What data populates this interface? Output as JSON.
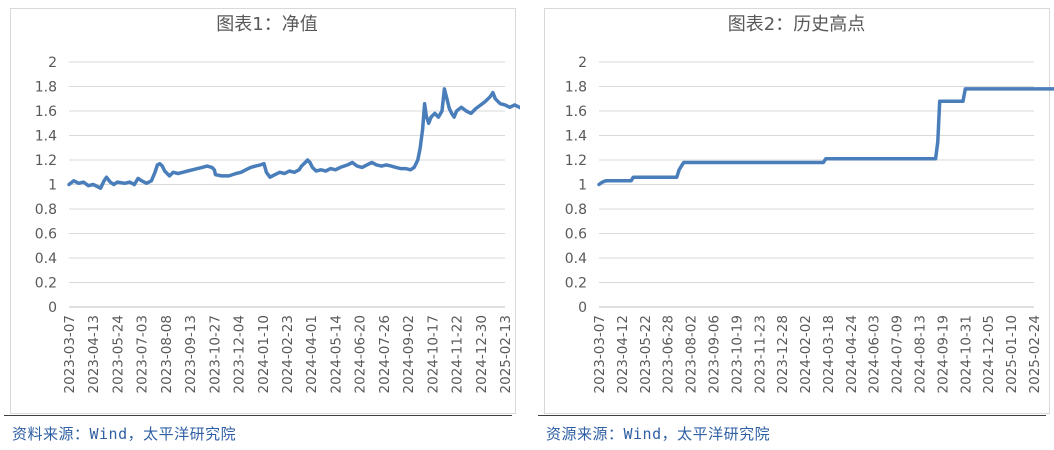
{
  "chart_data": [
    {
      "type": "line",
      "title": "图表1：净值",
      "xlabel": "",
      "ylabel": "",
      "ylim": [
        0,
        2
      ],
      "yticks": [
        "0",
        "0.2",
        "0.4",
        "0.6",
        "0.8",
        "1",
        "1.2",
        "1.4",
        "1.6",
        "1.8",
        "2"
      ],
      "categories": [
        "2023-03-07",
        "2023-04-13",
        "2023-05-24",
        "2023-07-03",
        "2023-08-08",
        "2023-09-13",
        "2023-10-27",
        "2023-12-04",
        "2024-01-10",
        "2024-02-23",
        "2024-04-01",
        "2024-05-14",
        "2024-06-20",
        "2024-07-26",
        "2024-09-02",
        "2024-10-17",
        "2024-11-22",
        "2024-12-30",
        "2025-02-13"
      ],
      "grid": true,
      "line_color": "#4a7ebb",
      "series": [
        {
          "name": "",
          "points": [
            [
              0,
              1.0
            ],
            [
              0.2,
              1.03
            ],
            [
              0.4,
              1.01
            ],
            [
              0.6,
              1.02
            ],
            [
              0.8,
              0.99
            ],
            [
              1.0,
              1.0
            ],
            [
              1.2,
              0.98
            ],
            [
              1.3,
              0.97
            ],
            [
              1.45,
              1.03
            ],
            [
              1.55,
              1.06
            ],
            [
              1.7,
              1.02
            ],
            [
              1.85,
              1.0
            ],
            [
              2.0,
              1.02
            ],
            [
              2.3,
              1.01
            ],
            [
              2.5,
              1.02
            ],
            [
              2.7,
              1.0
            ],
            [
              2.85,
              1.05
            ],
            [
              3.0,
              1.03
            ],
            [
              3.2,
              1.01
            ],
            [
              3.4,
              1.03
            ],
            [
              3.55,
              1.1
            ],
            [
              3.65,
              1.16
            ],
            [
              3.75,
              1.17
            ],
            [
              3.85,
              1.15
            ],
            [
              3.95,
              1.11
            ],
            [
              4.05,
              1.09
            ],
            [
              4.15,
              1.07
            ],
            [
              4.3,
              1.1
            ],
            [
              4.5,
              1.09
            ],
            [
              4.7,
              1.1
            ],
            [
              4.9,
              1.11
            ],
            [
              5.1,
              1.12
            ],
            [
              5.3,
              1.13
            ],
            [
              5.5,
              1.14
            ],
            [
              5.7,
              1.15
            ],
            [
              5.9,
              1.14
            ],
            [
              6.0,
              1.12
            ],
            [
              6.05,
              1.08
            ],
            [
              6.3,
              1.07
            ],
            [
              6.6,
              1.07
            ],
            [
              6.9,
              1.09
            ],
            [
              7.1,
              1.1
            ],
            [
              7.3,
              1.12
            ],
            [
              7.5,
              1.14
            ],
            [
              7.7,
              1.15
            ],
            [
              7.9,
              1.16
            ],
            [
              8.05,
              1.17
            ],
            [
              8.15,
              1.1
            ],
            [
              8.3,
              1.06
            ],
            [
              8.5,
              1.08
            ],
            [
              8.7,
              1.1
            ],
            [
              8.9,
              1.09
            ],
            [
              9.1,
              1.11
            ],
            [
              9.3,
              1.1
            ],
            [
              9.5,
              1.12
            ],
            [
              9.6,
              1.15
            ],
            [
              9.75,
              1.18
            ],
            [
              9.85,
              1.2
            ],
            [
              9.95,
              1.18
            ],
            [
              10.05,
              1.14
            ],
            [
              10.2,
              1.11
            ],
            [
              10.4,
              1.12
            ],
            [
              10.6,
              1.11
            ],
            [
              10.8,
              1.13
            ],
            [
              11.0,
              1.12
            ],
            [
              11.2,
              1.14
            ],
            [
              11.5,
              1.16
            ],
            [
              11.7,
              1.18
            ],
            [
              11.9,
              1.15
            ],
            [
              12.1,
              1.14
            ],
            [
              12.3,
              1.16
            ],
            [
              12.5,
              1.18
            ],
            [
              12.7,
              1.16
            ],
            [
              12.9,
              1.15
            ],
            [
              13.1,
              1.16
            ],
            [
              13.3,
              1.15
            ],
            [
              13.5,
              1.14
            ],
            [
              13.7,
              1.13
            ],
            [
              13.9,
              1.13
            ],
            [
              14.1,
              1.12
            ],
            [
              14.25,
              1.14
            ],
            [
              14.4,
              1.2
            ],
            [
              14.5,
              1.3
            ],
            [
              14.6,
              1.45
            ],
            [
              14.68,
              1.66
            ],
            [
              14.75,
              1.56
            ],
            [
              14.85,
              1.5
            ],
            [
              14.95,
              1.55
            ],
            [
              15.1,
              1.58
            ],
            [
              15.25,
              1.55
            ],
            [
              15.4,
              1.6
            ],
            [
              15.5,
              1.78
            ],
            [
              15.6,
              1.7
            ],
            [
              15.7,
              1.62
            ],
            [
              15.8,
              1.58
            ],
            [
              15.9,
              1.55
            ],
            [
              16.0,
              1.6
            ],
            [
              16.2,
              1.63
            ],
            [
              16.4,
              1.6
            ],
            [
              16.6,
              1.58
            ],
            [
              16.8,
              1.62
            ],
            [
              17.0,
              1.65
            ],
            [
              17.2,
              1.68
            ],
            [
              17.4,
              1.72
            ],
            [
              17.5,
              1.75
            ],
            [
              17.6,
              1.7
            ],
            [
              17.8,
              1.66
            ],
            [
              18.0,
              1.65
            ],
            [
              18.2,
              1.63
            ],
            [
              18.4,
              1.65
            ],
            [
              18.6,
              1.63
            ],
            [
              18.8,
              1.61
            ],
            [
              18.9,
              1.54
            ]
          ]
        }
      ],
      "source": "资料来源：Wind，太平洋研究院"
    },
    {
      "type": "line",
      "title": "图表2：历史高点",
      "xlabel": "",
      "ylabel": "",
      "ylim": [
        0,
        2
      ],
      "yticks": [
        "0",
        "0.2",
        "0.4",
        "0.6",
        "0.8",
        "1",
        "1.2",
        "1.4",
        "1.6",
        "1.8",
        "2"
      ],
      "categories": [
        "2023-03-07",
        "2023-04-12",
        "2023-05-22",
        "2023-06-28",
        "2023-08-02",
        "2023-09-06",
        "2023-10-19",
        "2023-11-23",
        "2023-12-28",
        "2024-02-02",
        "2024-03-18",
        "2024-04-24",
        "2024-06-03",
        "2024-07-09",
        "2024-08-13",
        "2024-09-19",
        "2024-10-31",
        "2024-12-05",
        "2025-01-10",
        "2025-02-24"
      ],
      "grid": true,
      "line_color": "#4a7ebb",
      "series": [
        {
          "name": "",
          "points": [
            [
              0,
              1.0
            ],
            [
              0.15,
              1.02
            ],
            [
              0.3,
              1.03
            ],
            [
              1.4,
              1.03
            ],
            [
              1.5,
              1.06
            ],
            [
              3.4,
              1.06
            ],
            [
              3.5,
              1.12
            ],
            [
              3.6,
              1.15
            ],
            [
              3.7,
              1.18
            ],
            [
              9.8,
              1.18
            ],
            [
              9.9,
              1.21
            ],
            [
              14.7,
              1.21
            ],
            [
              14.8,
              1.35
            ],
            [
              14.88,
              1.68
            ],
            [
              15.9,
              1.68
            ],
            [
              16.0,
              1.78
            ],
            [
              20.3,
              1.78
            ]
          ]
        }
      ],
      "source": "资源来源：Wind，太平洋研究院"
    }
  ]
}
